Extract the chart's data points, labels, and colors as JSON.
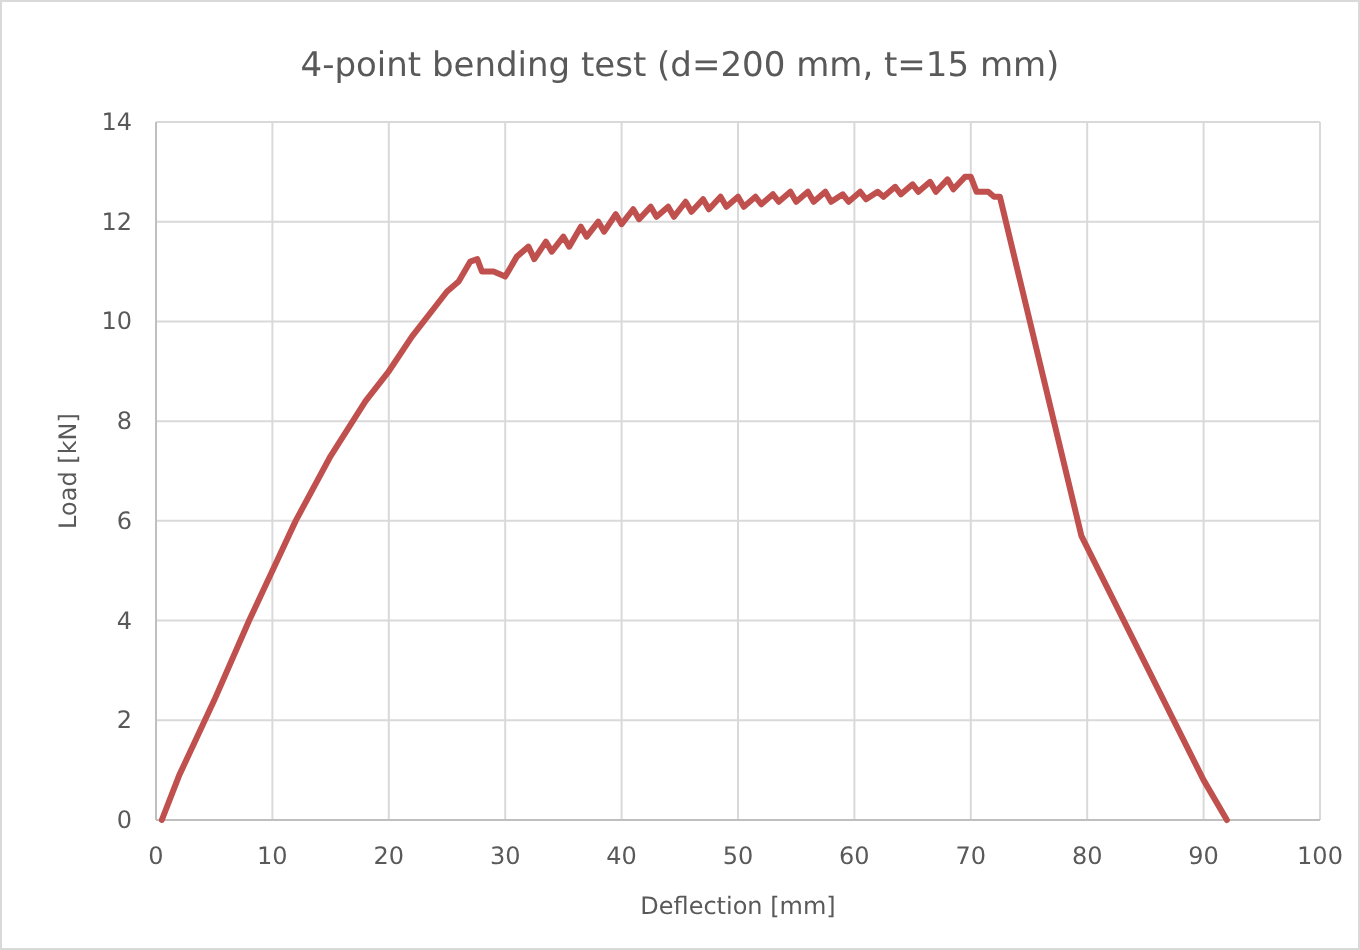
{
  "chart_data": {
    "type": "line",
    "title": "4-point bending test (d=200 mm, t=15 mm)",
    "xlabel": "Deflection [mm]",
    "ylabel": "Load [kN]",
    "xlim": [
      0,
      100
    ],
    "xticks": [
      0,
      10,
      20,
      30,
      40,
      50,
      60,
      70,
      80,
      90,
      100
    ],
    "ylim": [
      0,
      14
    ],
    "yticks": [
      0,
      2,
      4,
      6,
      8,
      10,
      12,
      14
    ],
    "grid": true,
    "marker": "none",
    "line_style": "solid",
    "series": [
      {
        "color": "#c0504d",
        "x": [
          0.5,
          2,
          5,
          8,
          10,
          12,
          15,
          18,
          20,
          22,
          24,
          25,
          26,
          27,
          27.6,
          28,
          29,
          30,
          31,
          32,
          32.5,
          33.5,
          34,
          35,
          35.5,
          36.5,
          37,
          38,
          38.5,
          39.5,
          40,
          41,
          41.5,
          42.5,
          43,
          44,
          44.5,
          45.5,
          46,
          47,
          47.5,
          48.5,
          49,
          50,
          50.5,
          51.5,
          52,
          53,
          53.5,
          54.5,
          55,
          56,
          56.5,
          57.5,
          58,
          59,
          59.5,
          60.5,
          61,
          62,
          62.5,
          63.5,
          64,
          65,
          65.5,
          66.5,
          67,
          68,
          68.5,
          69.5,
          70,
          70.5,
          71.5,
          72,
          72.5,
          79.5,
          90,
          92
        ],
        "values": [
          0,
          0.9,
          2.4,
          4,
          5,
          6,
          7.3,
          8.4,
          9,
          9.7,
          10.3,
          10.6,
          10.8,
          11.2,
          11.25,
          11,
          11,
          10.9,
          11.3,
          11.5,
          11.25,
          11.6,
          11.4,
          11.7,
          11.5,
          11.9,
          11.7,
          12,
          11.8,
          12.15,
          11.95,
          12.25,
          12.05,
          12.3,
          12.1,
          12.3,
          12.1,
          12.4,
          12.2,
          12.45,
          12.25,
          12.5,
          12.3,
          12.5,
          12.3,
          12.5,
          12.35,
          12.55,
          12.4,
          12.6,
          12.4,
          12.6,
          12.4,
          12.6,
          12.4,
          12.55,
          12.4,
          12.6,
          12.45,
          12.6,
          12.5,
          12.7,
          12.55,
          12.75,
          12.6,
          12.8,
          12.6,
          12.85,
          12.65,
          12.9,
          12.9,
          12.6,
          12.6,
          12.5,
          12.5,
          5.7,
          0.8,
          0
        ]
      }
    ]
  }
}
